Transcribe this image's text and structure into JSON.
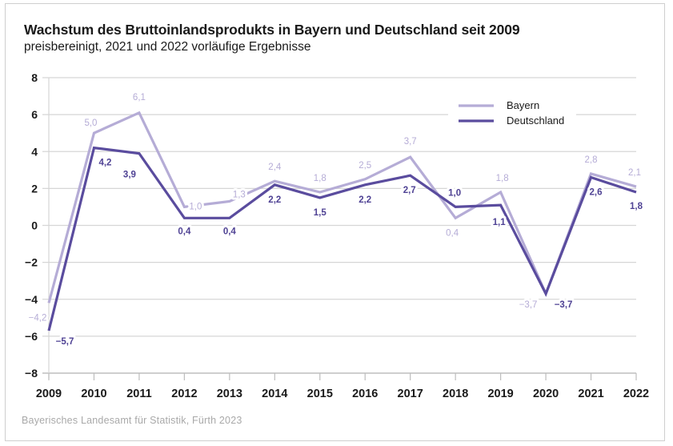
{
  "chart_data": {
    "type": "line",
    "title": "Wachstum des Bruttoinlandsprodukts in Bayern und Deutschland seit 2009",
    "subtitle": "preisbereinigt, 2021 und 2022 vorläufige Ergebnisse",
    "source": "Bayerisches Landesamt für Statistik, Fürth 2023",
    "xlabel": "",
    "ylabel": "",
    "x": [
      "2009",
      "2010",
      "2011",
      "2012",
      "2013",
      "2014",
      "2015",
      "2016",
      "2017",
      "2018",
      "2019",
      "2020",
      "2021",
      "2022"
    ],
    "ylim": [
      -8,
      8
    ],
    "yticks": [
      8,
      6,
      4,
      2,
      0,
      -2,
      -4,
      -6,
      -8
    ],
    "ytick_labels": [
      "8",
      "6",
      "4",
      "2",
      "0",
      "−2",
      "−4",
      "−6",
      "−8"
    ],
    "grid": true,
    "legend_position": "top-right",
    "series": [
      {
        "name": "Bayern",
        "color": "#b5acd6",
        "values": [
          -4.2,
          5.0,
          6.1,
          1.0,
          1.3,
          2.4,
          1.8,
          2.5,
          3.7,
          0.4,
          1.8,
          -3.7,
          2.8,
          2.1
        ],
        "labels": [
          "−4,2",
          "5,0",
          "6,1",
          "1,0",
          "1,3",
          "2,4",
          "1,8",
          "2,5",
          "3,7",
          "0,4",
          "1,8",
          "−3,7",
          "2,8",
          "2,1"
        ]
      },
      {
        "name": "Deutschland",
        "color": "#5a4c9e",
        "values": [
          -5.7,
          4.2,
          3.9,
          0.4,
          0.4,
          2.2,
          1.5,
          2.2,
          2.7,
          1.0,
          1.1,
          -3.7,
          2.6,
          1.8
        ],
        "labels": [
          "−5,7",
          "4,2",
          "3,9",
          "0,4",
          "0,4",
          "2,2",
          "1,5",
          "2,2",
          "2,7",
          "1,0",
          "1,1",
          "−3,7",
          "2,6",
          "1,8"
        ]
      }
    ]
  }
}
